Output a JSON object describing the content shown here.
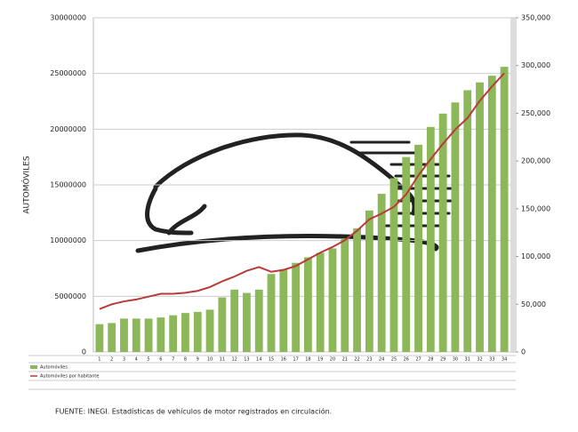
{
  "chart_data": {
    "type": "bar-line",
    "y_label": "AUTOMÓVILES",
    "note": "FUENTE: INEGI. Estadísticas de vehículos de motor registrados en circulación.",
    "categories": [
      "1",
      "2",
      "3",
      "4",
      "5",
      "6",
      "7",
      "8",
      "9",
      "10",
      "11",
      "12",
      "13",
      "14",
      "15",
      "16",
      "17",
      "18",
      "19",
      "20",
      "21",
      "22",
      "23",
      "24",
      "25",
      "26",
      "27",
      "28",
      "29",
      "30",
      "31",
      "32",
      "33",
      "34"
    ],
    "series": [
      {
        "name": "Automóviles",
        "type": "bar",
        "color": "#8db85a",
        "values": [
          2500000,
          2600000,
          3000000,
          3000000,
          3000000,
          3100000,
          3300000,
          3500000,
          3600000,
          3800000,
          4900000,
          5600000,
          5300000,
          5600000,
          7000000,
          7400000,
          8000000,
          8500000,
          8900000,
          9300000,
          10200000,
          11100000,
          12700000,
          14200000,
          15600000,
          17500000,
          18600000,
          20200000,
          21400000,
          22400000,
          23500000,
          24200000,
          24800000,
          25600000
        ]
      },
      {
        "name": "Automóviles por habitante",
        "type": "line",
        "axis": "y2",
        "color": "#b83a3a",
        "values": [
          45000,
          50000,
          53000,
          55000,
          58000,
          61000,
          61000,
          62000,
          64000,
          68000,
          74000,
          79000,
          85000,
          89000,
          84000,
          86000,
          90000,
          97000,
          104000,
          110000,
          117000,
          127000,
          139000,
          145000,
          152000,
          165000,
          185000,
          202000,
          218000,
          233000,
          245000,
          263000,
          278000,
          292000
        ]
      }
    ],
    "ylim": [
      0,
      30000000
    ],
    "yticks": [
      0,
      5000000,
      10000000,
      15000000,
      20000000,
      25000000,
      30000000
    ],
    "y2lim": [
      0,
      350000
    ],
    "y2ticks": [
      0,
      {
        "value": 50000,
        "label": "50,000"
      },
      {
        "value": 100000,
        "label": "100,000"
      },
      {
        "value": 150000,
        "label": "150,000"
      },
      {
        "value": 200000,
        "label": "200,000"
      },
      {
        "value": 250000,
        "label": "250,000"
      },
      {
        "value": 300000,
        "label": "300,000"
      },
      {
        "value": 350000,
        "label": "350,000"
      }
    ],
    "grid": true
  }
}
